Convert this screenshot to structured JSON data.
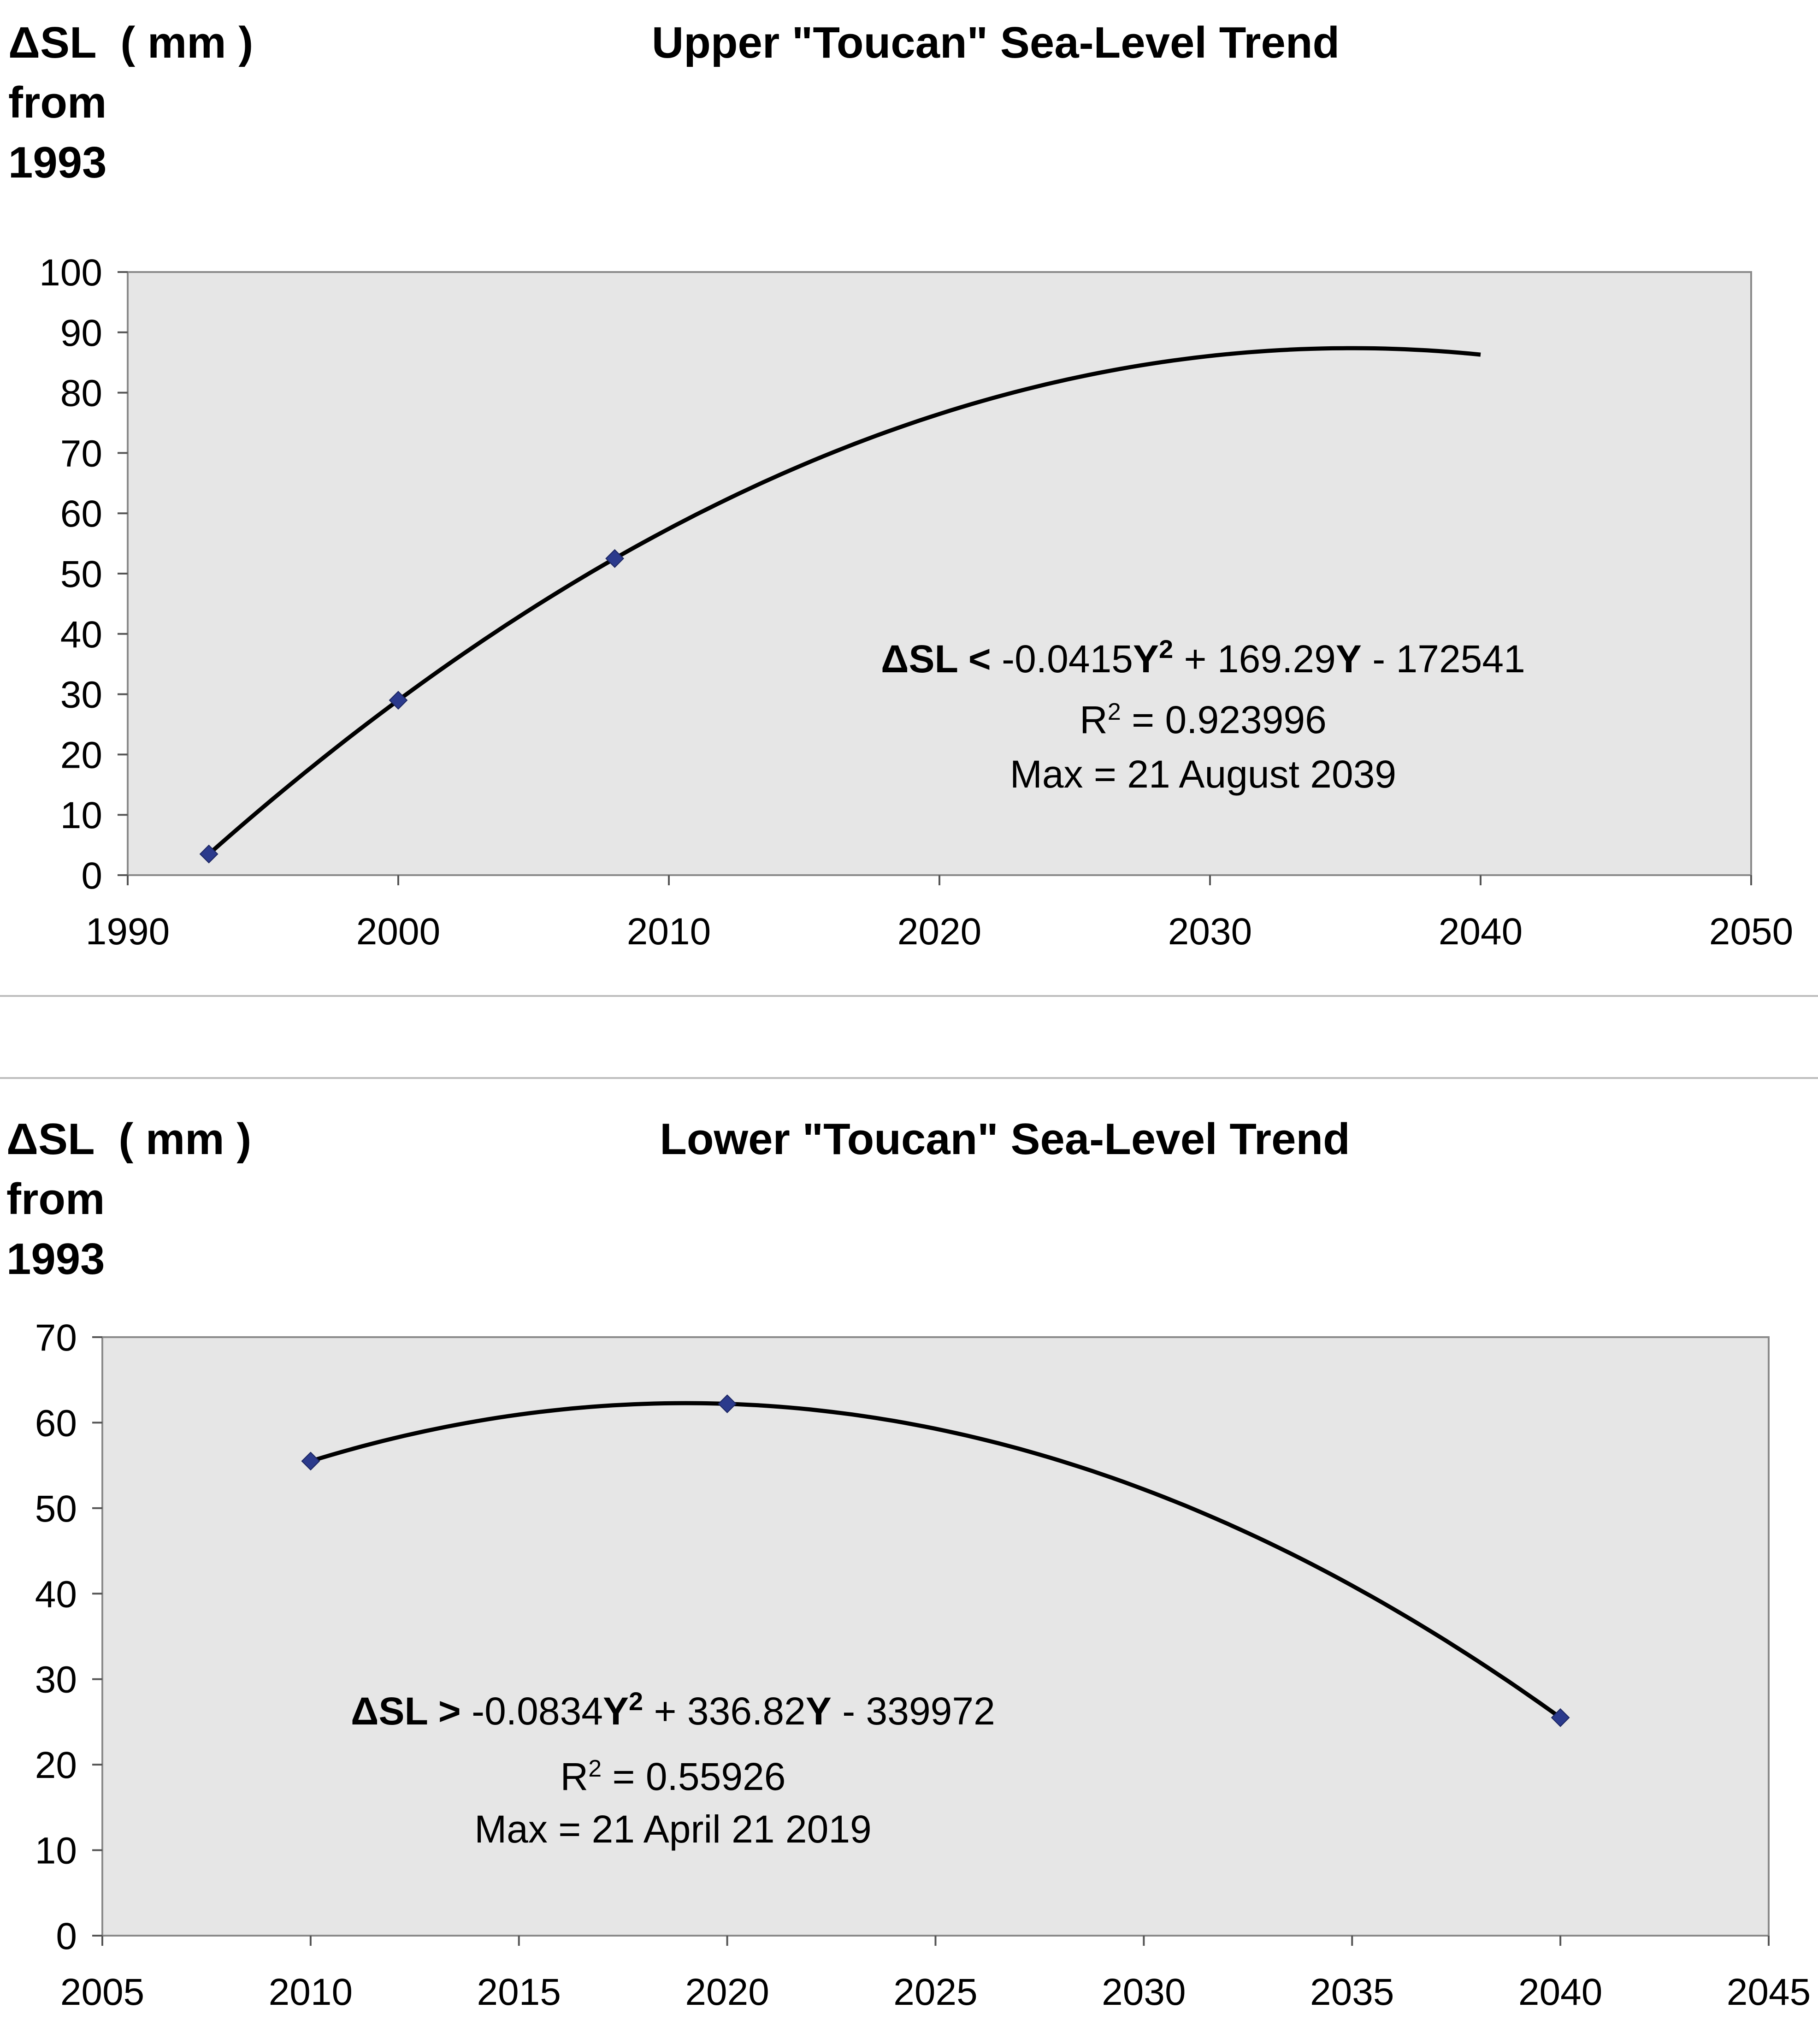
{
  "chart_data": [
    {
      "type": "scatter",
      "title": "Upper \"Toucan\" Sea-Level Trend",
      "ylabel_lines": [
        "ΔSL  ( mm )",
        "from",
        "1993"
      ],
      "xlabel": "",
      "xlim": [
        1990,
        2050
      ],
      "ylim": [
        0,
        100
      ],
      "xticks": [
        1990,
        2000,
        2010,
        2020,
        2030,
        2040,
        2050
      ],
      "yticks": [
        0,
        10,
        20,
        30,
        40,
        50,
        60,
        70,
        80,
        90,
        100
      ],
      "grid": false,
      "plot_background": "#e6e6e6",
      "series": [
        {
          "points": [
            [
              1993,
              3.5
            ],
            [
              2000,
              29
            ],
            [
              2008,
              52.5
            ]
          ],
          "marker": "diamond",
          "color": "#2b3a8c"
        }
      ],
      "trendline": {
        "kind": "quadratic-fit",
        "x_range": [
          1993,
          2040
        ],
        "color": "#000000"
      },
      "annotation": {
        "equation_prefix": "ΔSL <",
        "equation_terms": [
          {
            "text": " -0.0415",
            "bold": false
          },
          {
            "text": "Y",
            "bold": true
          },
          {
            "text": "2",
            "bold": true,
            "sup": true
          },
          {
            "text": " + 169.29",
            "bold": false
          },
          {
            "text": "Y",
            "bold": true
          },
          {
            "text": " - 172541",
            "bold": false
          }
        ],
        "r2_label": "R",
        "r2_value": " = 0.923996",
        "max_text": "Max = 21 August 2039"
      }
    },
    {
      "type": "scatter",
      "title": "Lower \"Toucan\" Sea-Level Trend",
      "ylabel_lines": [
        "ΔSL  ( mm )",
        "from",
        "1993"
      ],
      "xlabel": "",
      "xlim": [
        2005,
        2045
      ],
      "ylim": [
        0,
        70
      ],
      "xticks": [
        2005,
        2010,
        2015,
        2020,
        2025,
        2030,
        2035,
        2040,
        2045
      ],
      "yticks": [
        0,
        10,
        20,
        30,
        40,
        50,
        60,
        70
      ],
      "grid": false,
      "plot_background": "#e6e6e6",
      "series": [
        {
          "points": [
            [
              2010,
              55.5
            ],
            [
              2020,
              62.2
            ],
            [
              2040,
              25.5
            ]
          ],
          "marker": "diamond",
          "color": "#2b3a8c"
        }
      ],
      "trendline": {
        "kind": "quadratic-fit",
        "x_range": [
          2010,
          2040
        ],
        "color": "#000000"
      },
      "annotation": {
        "equation_prefix": "ΔSL >",
        "equation_terms": [
          {
            "text": " -0.0834",
            "bold": false
          },
          {
            "text": "Y",
            "bold": true
          },
          {
            "text": "2",
            "bold": true,
            "sup": true
          },
          {
            "text": " + 336.82",
            "bold": false
          },
          {
            "text": "Y",
            "bold": true
          },
          {
            "text": " - 339972",
            "bold": false
          }
        ],
        "r2_label": "R",
        "r2_value": " = 0.55926",
        "max_text": "Max = 21 April 21 2019"
      }
    }
  ]
}
